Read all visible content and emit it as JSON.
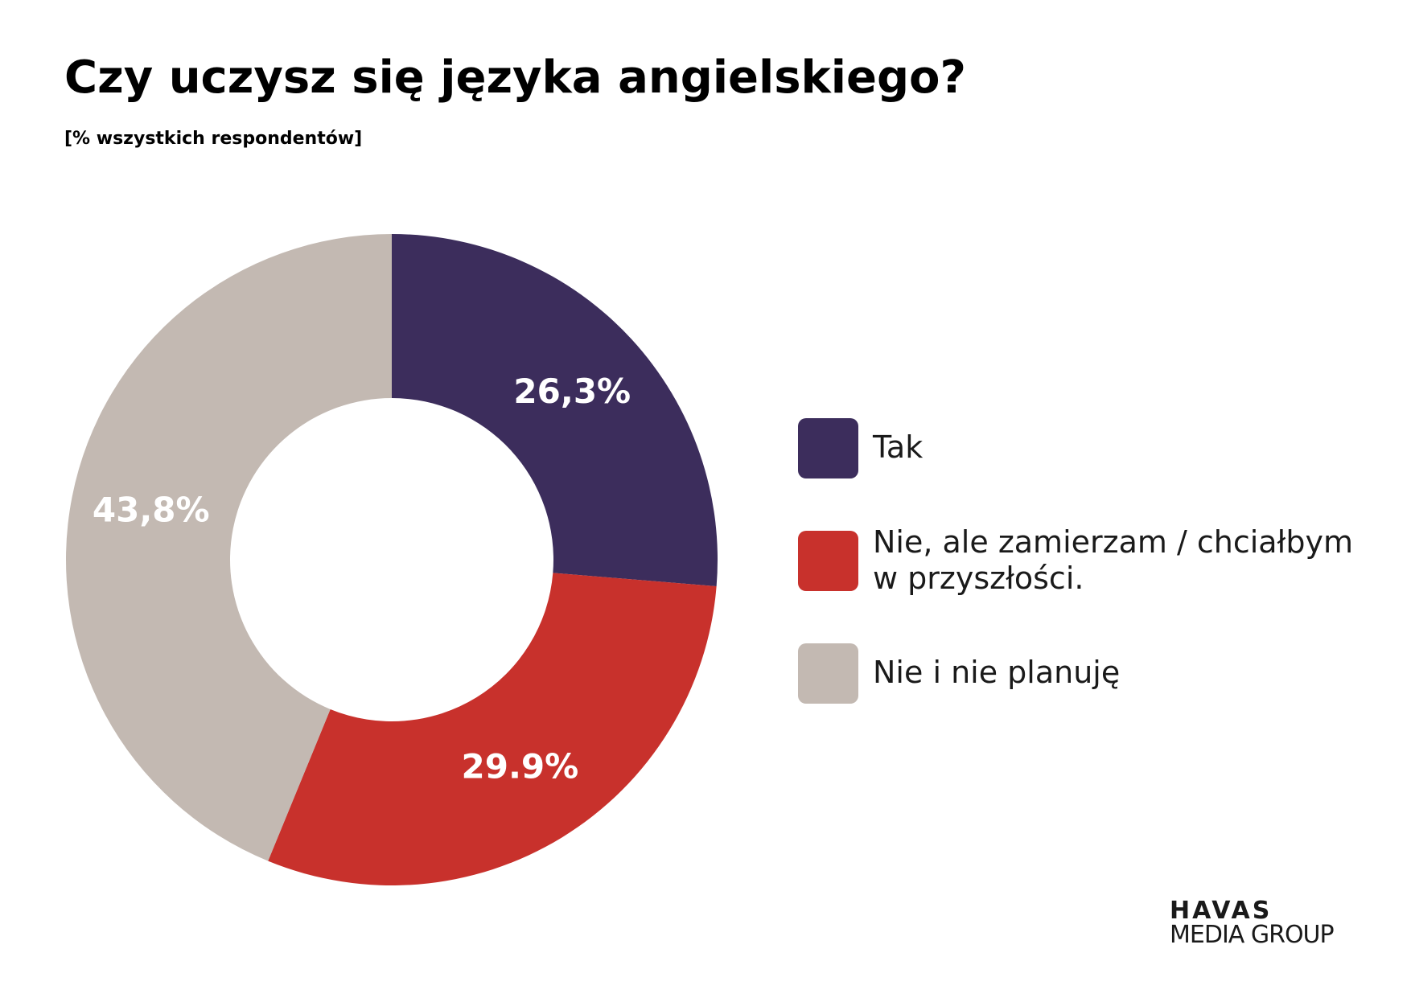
{
  "chart_data": {
    "type": "donut",
    "title": "Czy uczysz się języka angielskiego?",
    "subtitle": "[% wszystkich respondentów]",
    "categories": [
      "Tak",
      "Nie, ale zamierzam / chciałbym w przyszłości.",
      "Nie i nie planuję"
    ],
    "values": [
      26.3,
      29.9,
      43.8
    ],
    "value_labels": [
      "26,3%",
      "29.9%",
      "43,8%"
    ],
    "colors": [
      "#3c2d5c",
      "#c8312c",
      "#c3b9b2"
    ],
    "legend": "right"
  },
  "logo": [
    "HAVAS",
    "MEDIA GROUP"
  ]
}
